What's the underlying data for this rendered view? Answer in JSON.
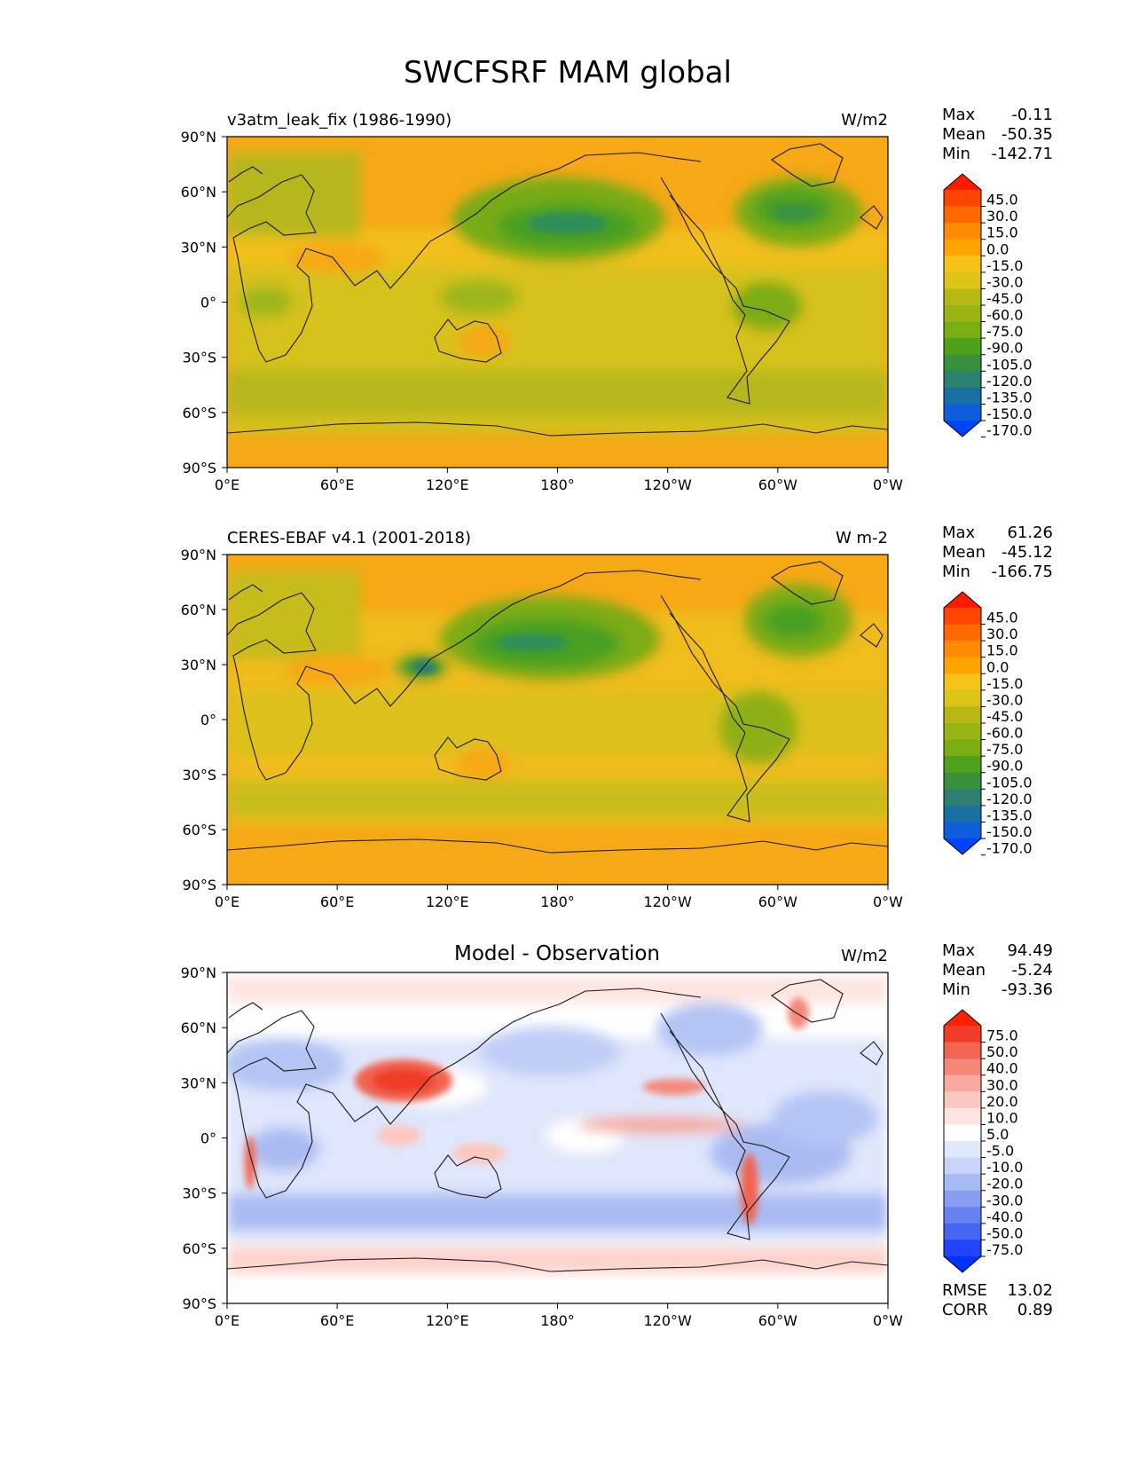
{
  "figure": {
    "title": "SWCFSRF MAM global"
  },
  "axes": {
    "lat_ticks": [
      "90°N",
      "60°N",
      "30°N",
      "0°",
      "30°S",
      "60°S",
      "90°S"
    ],
    "lon_ticks": [
      "0°E",
      "60°E",
      "120°E",
      "180°",
      "120°W",
      "60°W",
      "0°W"
    ]
  },
  "panels": [
    {
      "id": "model",
      "title_left": "v3atm_leak_fix (1986-1990)",
      "title_center": "",
      "units": "W/m2",
      "stats": [
        {
          "label": "Max",
          "value": "-0.11"
        },
        {
          "label": "Mean",
          "value": "-50.35"
        },
        {
          "label": "Min",
          "value": "-142.71"
        }
      ],
      "extra_stats": [],
      "colorbar": {
        "colors": [
          "#ff1a00",
          "#ff4500",
          "#ff6a00",
          "#ff8c00",
          "#ffa500",
          "#f5c21a",
          "#dcc418",
          "#b8b814",
          "#9ab416",
          "#7aac14",
          "#4fa01a",
          "#3a8f3a",
          "#2e8070",
          "#1a70a0",
          "#0d5ed8",
          "#0044ff"
        ],
        "labels": [
          "45.0",
          "30.0",
          "15.0",
          "0.0",
          "-15.0",
          "-30.0",
          "-45.0",
          "-60.0",
          "-75.0",
          "-90.0",
          "-105.0",
          "-120.0",
          "-135.0",
          "-150.0",
          "-170.0"
        ]
      }
    },
    {
      "id": "obs",
      "title_left": "CERES-EBAF v4.1 (2001-2018)",
      "title_center": "",
      "units": "W m-2",
      "stats": [
        {
          "label": "Max",
          "value": "61.26"
        },
        {
          "label": "Mean",
          "value": "-45.12"
        },
        {
          "label": "Min",
          "value": "-166.75"
        }
      ],
      "extra_stats": [],
      "colorbar": {
        "colors": [
          "#ff1a00",
          "#ff4500",
          "#ff6a00",
          "#ff8c00",
          "#ffa500",
          "#f5c21a",
          "#dcc418",
          "#b8b814",
          "#9ab416",
          "#7aac14",
          "#4fa01a",
          "#3a8f3a",
          "#2e8070",
          "#1a70a0",
          "#0d5ed8",
          "#0044ff"
        ],
        "labels": [
          "45.0",
          "30.0",
          "15.0",
          "0.0",
          "-15.0",
          "-30.0",
          "-45.0",
          "-60.0",
          "-75.0",
          "-90.0",
          "-105.0",
          "-120.0",
          "-135.0",
          "-150.0",
          "-170.0"
        ]
      }
    },
    {
      "id": "diff",
      "title_left": "",
      "title_center": "Model - Observation",
      "units": "W/m2",
      "stats": [
        {
          "label": "Max",
          "value": "94.49"
        },
        {
          "label": "Mean",
          "value": "-5.24"
        },
        {
          "label": "Min",
          "value": "-93.36"
        }
      ],
      "extra_stats": [
        {
          "label": "RMSE",
          "value": "13.02"
        },
        {
          "label": "CORR",
          "value": "0.89"
        }
      ],
      "colorbar": {
        "colors": [
          "#ff2200",
          "#f03c28",
          "#f06450",
          "#f5877a",
          "#f8aaa0",
          "#fbc8c0",
          "#fde4e0",
          "#ffffff",
          "#e2e8fb",
          "#c8d4f8",
          "#a8baf2",
          "#889ef0",
          "#6682ee",
          "#4466f0",
          "#2244f8",
          "#0033ff"
        ],
        "labels": [
          "75.0",
          "50.0",
          "40.0",
          "30.0",
          "20.0",
          "10.0",
          "5.0",
          "-5.0",
          "-10.0",
          "-20.0",
          "-30.0",
          "-40.0",
          "-50.0",
          "-75.0"
        ]
      }
    }
  ]
}
